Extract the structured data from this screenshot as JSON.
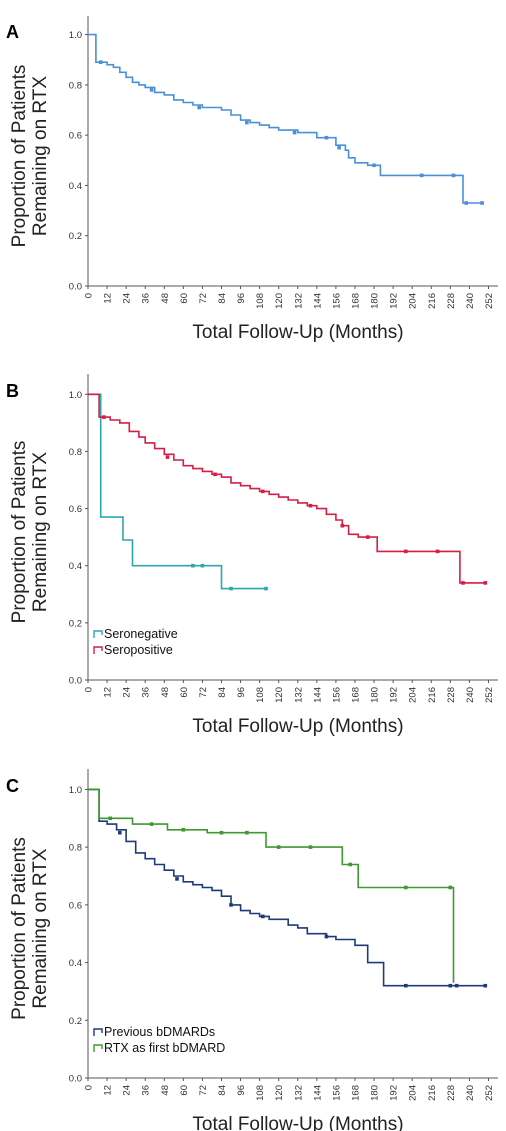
{
  "chart_data": [
    {
      "panel_label": "A",
      "type": "line",
      "subtype": "kaplan-meier step",
      "ylabel_lines": [
        "Proportion of Patients",
        "Remaining on RTX"
      ],
      "xlabel": "Total Follow-Up (Months)",
      "xlim": [
        0,
        258
      ],
      "ylim": [
        0,
        1.05
      ],
      "xticks": [
        "0",
        "12",
        "24",
        "36",
        "48",
        "60",
        "72",
        "84",
        "96",
        "108",
        "120",
        "132",
        "144",
        "156",
        "168",
        "180",
        "192",
        "204",
        "216",
        "228",
        "240",
        "252"
      ],
      "yticks": [
        "0.0",
        "0.2",
        "0.4",
        "0.6",
        "0.8",
        "1.0"
      ],
      "legend": [],
      "series": [
        {
          "color": "#4a90d9",
          "points": [
            [
              0,
              1.0
            ],
            [
              5,
              1.0
            ],
            [
              5,
              0.89
            ],
            [
              8,
              0.89
            ],
            [
              12,
              0.88
            ],
            [
              16,
              0.87
            ],
            [
              20,
              0.85
            ],
            [
              24,
              0.83
            ],
            [
              28,
              0.81
            ],
            [
              32,
              0.8
            ],
            [
              36,
              0.79
            ],
            [
              42,
              0.77
            ],
            [
              48,
              0.76
            ],
            [
              54,
              0.74
            ],
            [
              60,
              0.73
            ],
            [
              66,
              0.72
            ],
            [
              72,
              0.71
            ],
            [
              78,
              0.71
            ],
            [
              84,
              0.7
            ],
            [
              90,
              0.68
            ],
            [
              96,
              0.66
            ],
            [
              102,
              0.65
            ],
            [
              108,
              0.64
            ],
            [
              114,
              0.63
            ],
            [
              120,
              0.62
            ],
            [
              126,
              0.62
            ],
            [
              132,
              0.61
            ],
            [
              138,
              0.61
            ],
            [
              144,
              0.59
            ],
            [
              150,
              0.59
            ],
            [
              156,
              0.56
            ],
            [
              162,
              0.54
            ],
            [
              164,
              0.51
            ],
            [
              168,
              0.49
            ],
            [
              176,
              0.48
            ],
            [
              182,
              0.48
            ],
            [
              184,
              0.44
            ],
            [
              226,
              0.44
            ],
            [
              236,
              0.44
            ],
            [
              236,
              0.33
            ],
            [
              248,
              0.33
            ]
          ],
          "censored": [
            [
              8,
              0.89
            ],
            [
              40,
              0.78
            ],
            [
              70,
              0.71
            ],
            [
              100,
              0.65
            ],
            [
              130,
              0.61
            ],
            [
              150,
              0.59
            ],
            [
              158,
              0.55
            ],
            [
              180,
              0.48
            ],
            [
              210,
              0.44
            ],
            [
              230,
              0.44
            ],
            [
              238,
              0.33
            ],
            [
              248,
              0.33
            ]
          ]
        }
      ]
    },
    {
      "panel_label": "B",
      "type": "line",
      "subtype": "kaplan-meier step",
      "ylabel_lines": [
        "Proportion of Patients",
        "Remaining on RTX"
      ],
      "xlabel": "Total Follow-Up (Months)",
      "xlim": [
        0,
        258
      ],
      "ylim": [
        0,
        1.05
      ],
      "xticks": [
        "0",
        "12",
        "24",
        "36",
        "48",
        "60",
        "72",
        "84",
        "96",
        "108",
        "120",
        "132",
        "144",
        "156",
        "168",
        "180",
        "192",
        "204",
        "216",
        "228",
        "240",
        "252"
      ],
      "yticks": [
        "0.0",
        "0.2",
        "0.4",
        "0.6",
        "0.8",
        "1.0"
      ],
      "legend": [
        "Seronegative",
        "Seropositive"
      ],
      "series": [
        {
          "name": "Seronegative",
          "color": "#2aa8b0",
          "points": [
            [
              0,
              1.0
            ],
            [
              8,
              1.0
            ],
            [
              8,
              0.57
            ],
            [
              22,
              0.57
            ],
            [
              22,
              0.49
            ],
            [
              28,
              0.49
            ],
            [
              28,
              0.4
            ],
            [
              84,
              0.4
            ],
            [
              84,
              0.32
            ],
            [
              112,
              0.32
            ]
          ],
          "censored": [
            [
              66,
              0.4
            ],
            [
              72,
              0.4
            ],
            [
              90,
              0.32
            ],
            [
              112,
              0.32
            ]
          ]
        },
        {
          "name": "Seropositive",
          "color": "#d41e46",
          "points": [
            [
              0,
              1.0
            ],
            [
              7,
              1.0
            ],
            [
              7,
              0.92
            ],
            [
              14,
              0.91
            ],
            [
              20,
              0.9
            ],
            [
              26,
              0.87
            ],
            [
              32,
              0.85
            ],
            [
              36,
              0.83
            ],
            [
              42,
              0.81
            ],
            [
              48,
              0.79
            ],
            [
              54,
              0.77
            ],
            [
              60,
              0.75
            ],
            [
              66,
              0.74
            ],
            [
              72,
              0.73
            ],
            [
              78,
              0.72
            ],
            [
              84,
              0.71
            ],
            [
              90,
              0.69
            ],
            [
              96,
              0.68
            ],
            [
              102,
              0.67
            ],
            [
              108,
              0.66
            ],
            [
              114,
              0.65
            ],
            [
              120,
              0.64
            ],
            [
              126,
              0.63
            ],
            [
              132,
              0.62
            ],
            [
              138,
              0.61
            ],
            [
              144,
              0.6
            ],
            [
              150,
              0.58
            ],
            [
              156,
              0.56
            ],
            [
              160,
              0.54
            ],
            [
              164,
              0.51
            ],
            [
              170,
              0.5
            ],
            [
              180,
              0.5
            ],
            [
              182,
              0.45
            ],
            [
              226,
              0.45
            ],
            [
              234,
              0.45
            ],
            [
              234,
              0.34
            ],
            [
              250,
              0.34
            ]
          ],
          "censored": [
            [
              10,
              0.92
            ],
            [
              50,
              0.78
            ],
            [
              80,
              0.72
            ],
            [
              110,
              0.66
            ],
            [
              140,
              0.61
            ],
            [
              160,
              0.54
            ],
            [
              176,
              0.5
            ],
            [
              200,
              0.45
            ],
            [
              220,
              0.45
            ],
            [
              236,
              0.34
            ],
            [
              250,
              0.34
            ]
          ]
        }
      ]
    },
    {
      "panel_label": "C",
      "type": "line",
      "subtype": "kaplan-meier step",
      "ylabel_lines": [
        "Proportion of Patients",
        "Remaining on RTX"
      ],
      "xlabel": "Total Follow-Up (Months)",
      "xlim": [
        0,
        258
      ],
      "ylim": [
        0,
        1.05
      ],
      "xticks": [
        "0",
        "12",
        "24",
        "36",
        "48",
        "60",
        "72",
        "84",
        "96",
        "108",
        "120",
        "132",
        "144",
        "156",
        "168",
        "180",
        "192",
        "204",
        "216",
        "228",
        "240",
        "252"
      ],
      "yticks": [
        "0.0",
        "0.2",
        "0.4",
        "0.6",
        "0.8",
        "1.0"
      ],
      "legend": [
        "Previous bDMARDs",
        "RTX as first bDMARD"
      ],
      "series": [
        {
          "name": "Previous bDMARDs",
          "color": "#1f3a7a",
          "points": [
            [
              0,
              1.0
            ],
            [
              7,
              1.0
            ],
            [
              7,
              0.89
            ],
            [
              12,
              0.88
            ],
            [
              18,
              0.86
            ],
            [
              24,
              0.82
            ],
            [
              30,
              0.78
            ],
            [
              36,
              0.76
            ],
            [
              42,
              0.74
            ],
            [
              48,
              0.72
            ],
            [
              54,
              0.7
            ],
            [
              60,
              0.68
            ],
            [
              66,
              0.67
            ],
            [
              72,
              0.66
            ],
            [
              78,
              0.65
            ],
            [
              84,
              0.63
            ],
            [
              90,
              0.6
            ],
            [
              96,
              0.58
            ],
            [
              102,
              0.57
            ],
            [
              108,
              0.56
            ],
            [
              114,
              0.55
            ],
            [
              120,
              0.55
            ],
            [
              126,
              0.53
            ],
            [
              132,
              0.52
            ],
            [
              138,
              0.5
            ],
            [
              144,
              0.5
            ],
            [
              150,
              0.49
            ],
            [
              156,
              0.48
            ],
            [
              162,
              0.48
            ],
            [
              168,
              0.46
            ],
            [
              174,
              0.46
            ],
            [
              176,
              0.4
            ],
            [
              184,
              0.4
            ],
            [
              186,
              0.32
            ],
            [
              250,
              0.32
            ]
          ],
          "censored": [
            [
              20,
              0.85
            ],
            [
              56,
              0.69
            ],
            [
              90,
              0.6
            ],
            [
              110,
              0.56
            ],
            [
              150,
              0.49
            ],
            [
              200,
              0.32
            ],
            [
              228,
              0.32
            ],
            [
              232,
              0.32
            ],
            [
              250,
              0.32
            ]
          ]
        },
        {
          "name": "RTX as first bDMARD",
          "color": "#3e9a2e",
          "points": [
            [
              0,
              1.0
            ],
            [
              7,
              1.0
            ],
            [
              7,
              0.9
            ],
            [
              24,
              0.9
            ],
            [
              28,
              0.88
            ],
            [
              48,
              0.88
            ],
            [
              50,
              0.86
            ],
            [
              72,
              0.86
            ],
            [
              75,
              0.85
            ],
            [
              108,
              0.85
            ],
            [
              112,
              0.8
            ],
            [
              144,
              0.8
            ],
            [
              148,
              0.8
            ],
            [
              158,
              0.8
            ],
            [
              160,
              0.74
            ],
            [
              168,
              0.74
            ],
            [
              170,
              0.66
            ],
            [
              226,
              0.66
            ],
            [
              230,
              0.66
            ],
            [
              230,
              0.33
            ]
          ],
          "censored": [
            [
              14,
              0.9
            ],
            [
              40,
              0.88
            ],
            [
              60,
              0.86
            ],
            [
              84,
              0.85
            ],
            [
              100,
              0.85
            ],
            [
              120,
              0.8
            ],
            [
              140,
              0.8
            ],
            [
              165,
              0.74
            ],
            [
              200,
              0.66
            ],
            [
              228,
              0.66
            ]
          ]
        }
      ]
    }
  ]
}
